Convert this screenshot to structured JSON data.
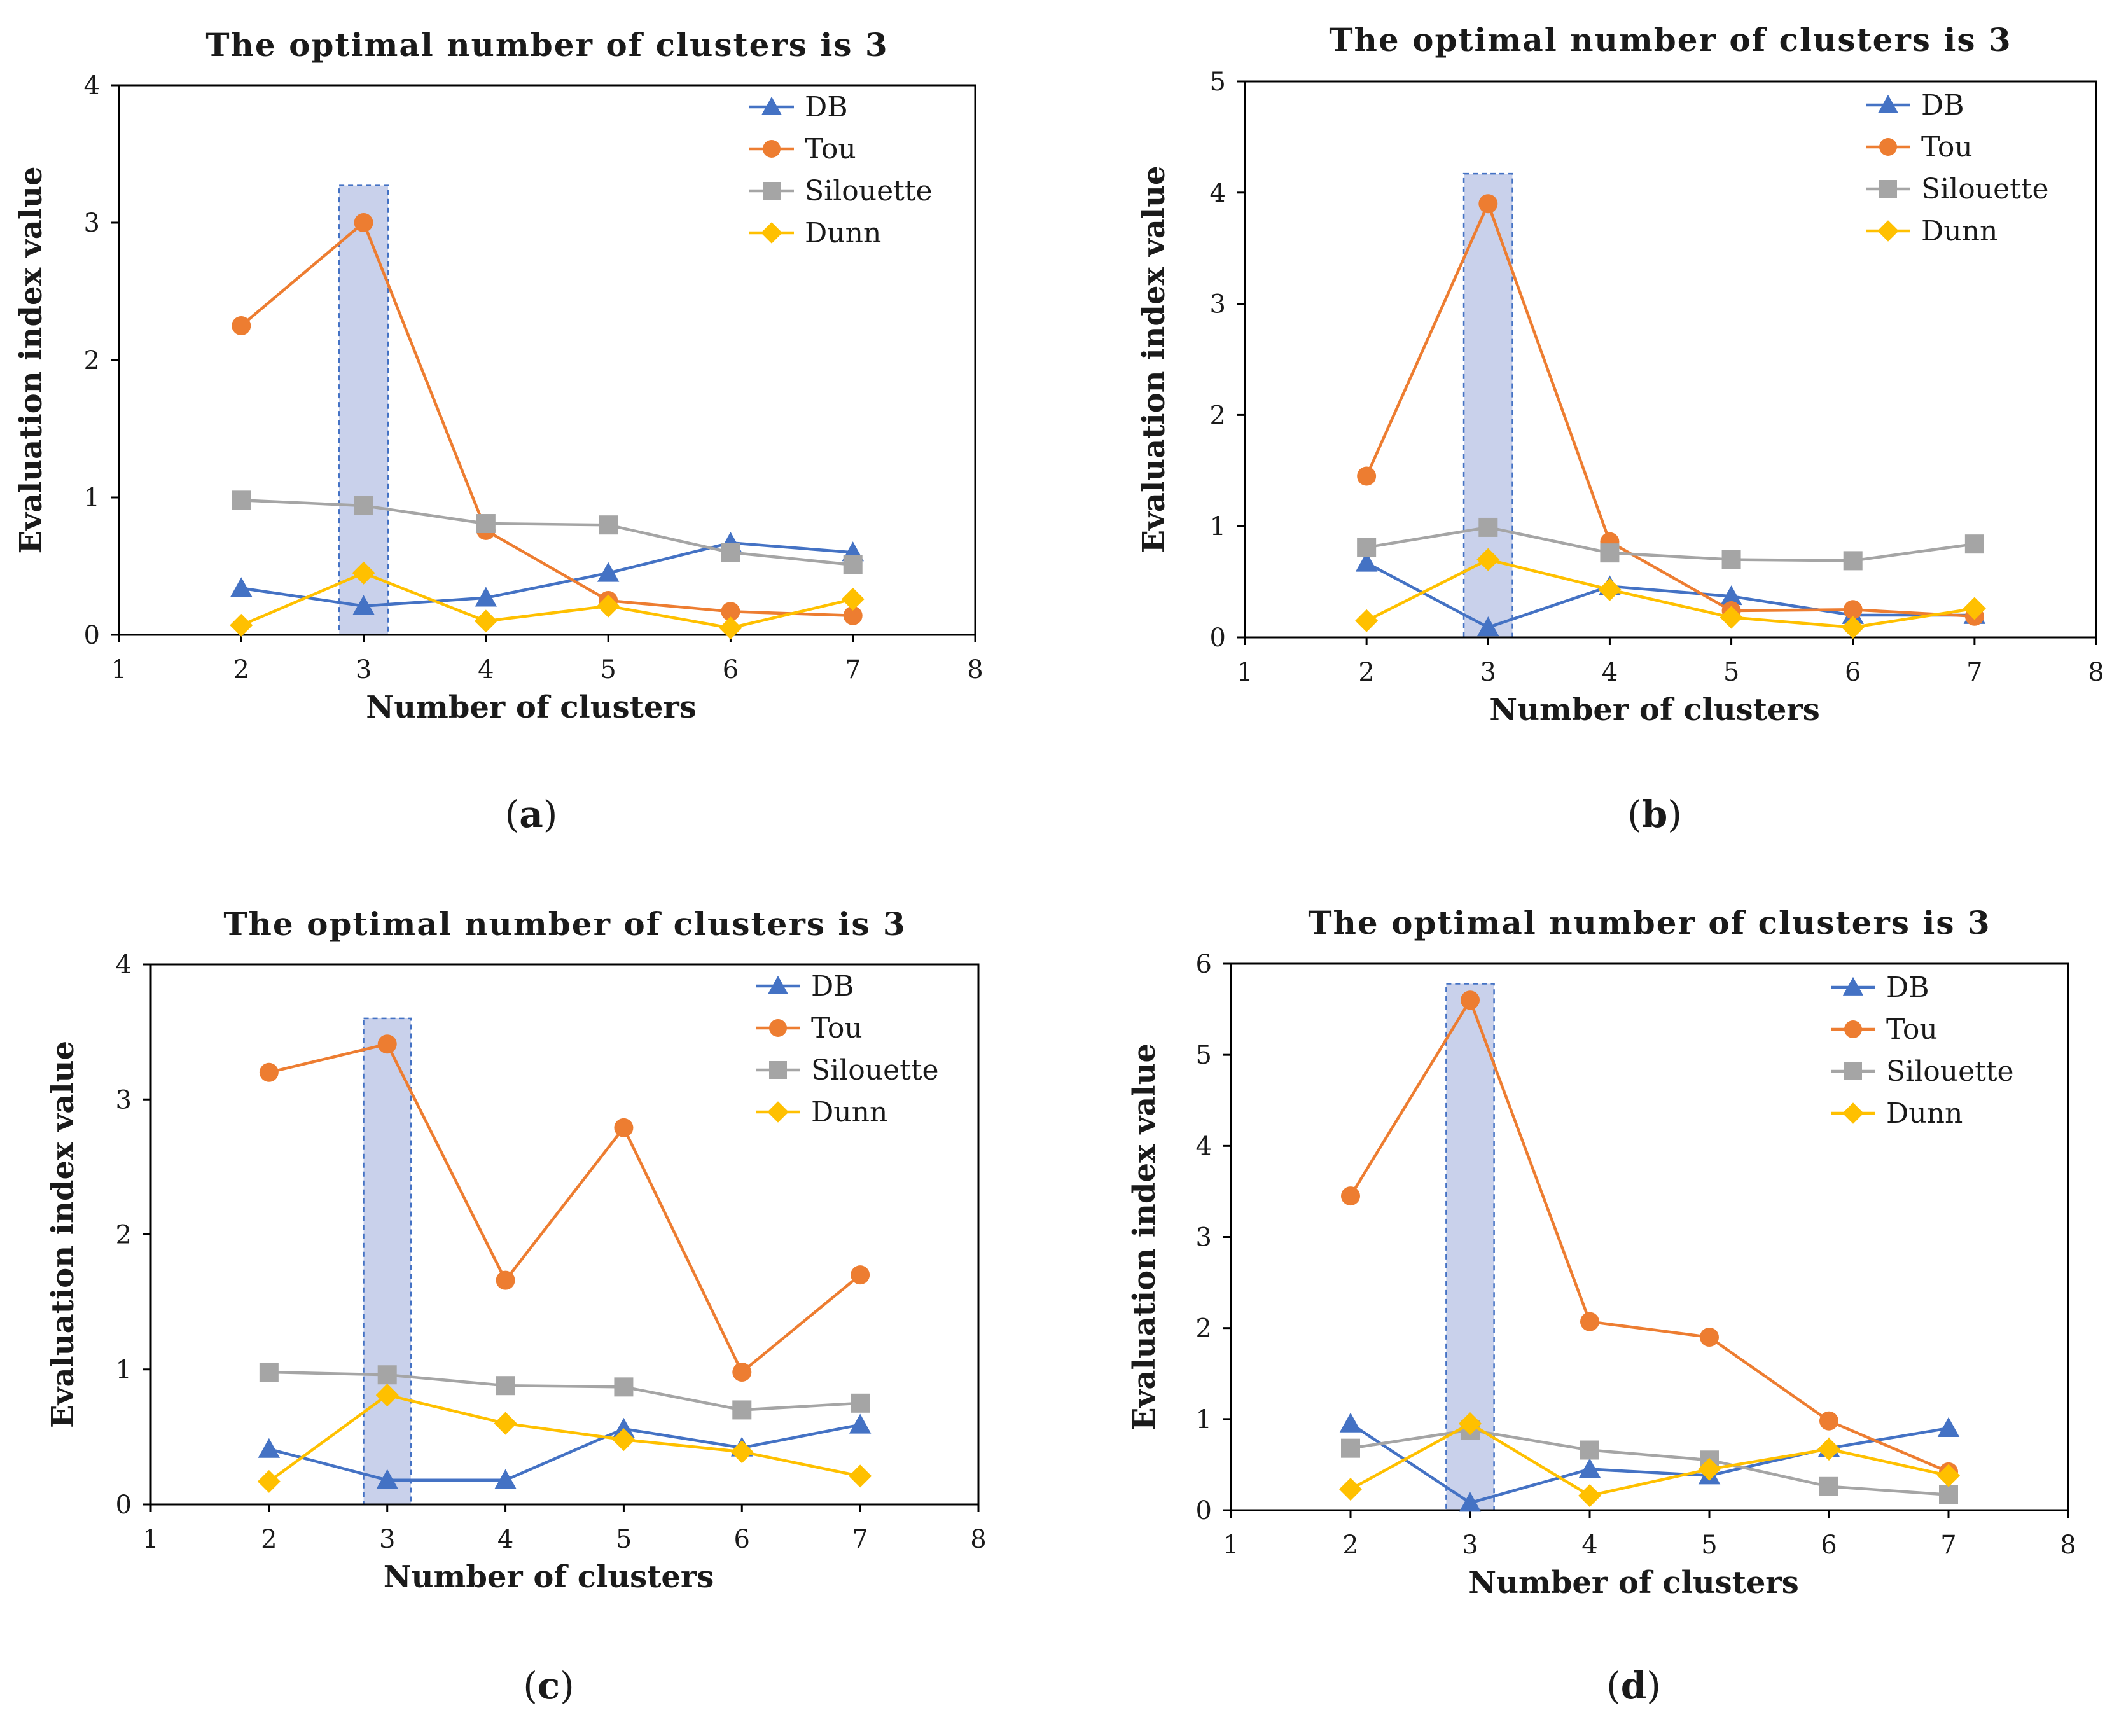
{
  "chart_data": [
    {
      "panel_label": "a",
      "type": "line",
      "title": "The optimal number of clusters is 3",
      "xlabel": "Number of clusters",
      "ylabel": "Evaluation index value",
      "xlim": [
        1,
        8
      ],
      "ylim": [
        0,
        4
      ],
      "xticks": [
        1,
        2,
        3,
        4,
        5,
        6,
        7,
        8
      ],
      "yticks": [
        0,
        1,
        2,
        3,
        4
      ],
      "highlight": {
        "x_from": 2.8,
        "x_to": 3.2,
        "y_top": 3.27
      },
      "legend_position": "top-right",
      "x": [
        2,
        3,
        4,
        5,
        6,
        7
      ],
      "series": [
        {
          "name": "DB",
          "marker": "triangle",
          "color": "#4472C4",
          "values": [
            0.34,
            0.21,
            0.27,
            0.45,
            0.67,
            0.6
          ]
        },
        {
          "name": "Tou",
          "marker": "circle",
          "color": "#ED7D31",
          "values": [
            2.25,
            3.0,
            0.76,
            0.25,
            0.17,
            0.14
          ]
        },
        {
          "name": "Silouette",
          "marker": "square",
          "color": "#A5A5A5",
          "values": [
            0.98,
            0.94,
            0.81,
            0.8,
            0.6,
            0.51
          ]
        },
        {
          "name": "Dunn",
          "marker": "diamond",
          "color": "#FFC000",
          "values": [
            0.07,
            0.45,
            0.1,
            0.21,
            0.05,
            0.26
          ]
        }
      ]
    },
    {
      "panel_label": "b",
      "type": "line",
      "title": "The optimal number of clusters is 3",
      "xlabel": "Number of clusters",
      "ylabel": "Evaluation index value",
      "xlim": [
        1,
        8
      ],
      "ylim": [
        0,
        5
      ],
      "xticks": [
        1,
        2,
        3,
        4,
        5,
        6,
        7,
        8
      ],
      "yticks": [
        0,
        1,
        2,
        3,
        4,
        5
      ],
      "highlight": {
        "x_from": 2.8,
        "x_to": 3.2,
        "y_top": 4.17
      },
      "legend_position": "top-right",
      "x": [
        2,
        3,
        4,
        5,
        6,
        7
      ],
      "series": [
        {
          "name": "DB",
          "marker": "triangle",
          "color": "#4472C4",
          "values": [
            0.67,
            0.09,
            0.46,
            0.37,
            0.2,
            0.2
          ]
        },
        {
          "name": "Tou",
          "marker": "circle",
          "color": "#ED7D31",
          "values": [
            1.45,
            3.9,
            0.86,
            0.24,
            0.25,
            0.19
          ]
        },
        {
          "name": "Silouette",
          "marker": "square",
          "color": "#A5A5A5",
          "values": [
            0.81,
            0.99,
            0.76,
            0.7,
            0.69,
            0.84
          ]
        },
        {
          "name": "Dunn",
          "marker": "diamond",
          "color": "#FFC000",
          "values": [
            0.15,
            0.7,
            0.43,
            0.18,
            0.09,
            0.26
          ]
        }
      ]
    },
    {
      "panel_label": "c",
      "type": "line",
      "title": "The optimal number of clusters is 3",
      "xlabel": "Number of clusters",
      "ylabel": "Evaluation index value",
      "xlim": [
        1,
        8
      ],
      "ylim": [
        0,
        4
      ],
      "xticks": [
        1,
        2,
        3,
        4,
        5,
        6,
        7,
        8
      ],
      "yticks": [
        0,
        1,
        2,
        3,
        4
      ],
      "highlight": {
        "x_from": 2.8,
        "x_to": 3.2,
        "y_top": 3.6
      },
      "legend_position": "top-right",
      "x": [
        2,
        3,
        4,
        5,
        6,
        7
      ],
      "series": [
        {
          "name": "DB",
          "marker": "triangle",
          "color": "#4472C4",
          "values": [
            0.41,
            0.18,
            0.18,
            0.56,
            0.42,
            0.59
          ]
        },
        {
          "name": "Tou",
          "marker": "circle",
          "color": "#ED7D31",
          "values": [
            3.2,
            3.41,
            1.66,
            2.79,
            0.98,
            1.7
          ]
        },
        {
          "name": "Silouette",
          "marker": "square",
          "color": "#A5A5A5",
          "values": [
            0.98,
            0.96,
            0.88,
            0.87,
            0.7,
            0.75
          ]
        },
        {
          "name": "Dunn",
          "marker": "diamond",
          "color": "#FFC000",
          "values": [
            0.17,
            0.81,
            0.6,
            0.48,
            0.39,
            0.21
          ]
        }
      ]
    },
    {
      "panel_label": "d",
      "type": "line",
      "title": "The optimal number of clusters is 3",
      "xlabel": "Number of clusters",
      "ylabel": "Evaluation index value",
      "xlim": [
        1,
        8
      ],
      "ylim": [
        0,
        6
      ],
      "xticks": [
        1,
        2,
        3,
        4,
        5,
        6,
        7,
        8
      ],
      "yticks": [
        0,
        1,
        2,
        3,
        4,
        5,
        6
      ],
      "highlight": {
        "x_from": 2.8,
        "x_to": 3.2,
        "y_top": 5.78
      },
      "legend_position": "top-right",
      "x": [
        2,
        3,
        4,
        5,
        6,
        7
      ],
      "series": [
        {
          "name": "DB",
          "marker": "triangle",
          "color": "#4472C4",
          "values": [
            0.95,
            0.08,
            0.45,
            0.38,
            0.68,
            0.9
          ]
        },
        {
          "name": "Tou",
          "marker": "circle",
          "color": "#ED7D31",
          "values": [
            3.45,
            5.6,
            2.07,
            1.9,
            0.98,
            0.42
          ]
        },
        {
          "name": "Silouette",
          "marker": "square",
          "color": "#A5A5A5",
          "values": [
            0.68,
            0.88,
            0.66,
            0.55,
            0.26,
            0.17
          ]
        },
        {
          "name": "Dunn",
          "marker": "diamond",
          "color": "#FFC000",
          "values": [
            0.23,
            0.95,
            0.16,
            0.45,
            0.67,
            0.38
          ]
        }
      ]
    }
  ]
}
